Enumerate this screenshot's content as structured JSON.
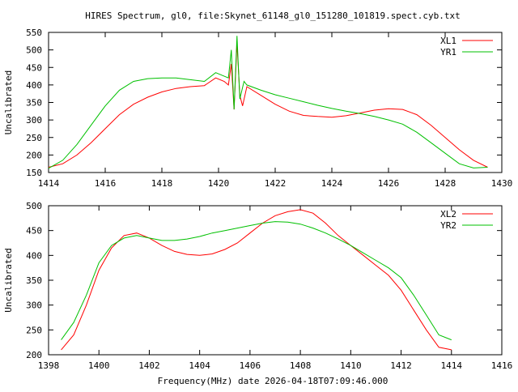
{
  "title": "HIRES Spectrum, gl0, file:Skynet_61148_gl0_151280_101819.spect.cyb.txt",
  "xlabel_bottom": "Frequency(MHz) date 2026-04-18T07:09:46.000",
  "chart_data": [
    {
      "type": "line",
      "ylabel": "Uncalibrated",
      "xlim": [
        1414,
        1430
      ],
      "ylim": [
        150,
        550
      ],
      "xticks": [
        1414,
        1416,
        1418,
        1420,
        1422,
        1424,
        1426,
        1428,
        1430
      ],
      "yticks": [
        150,
        200,
        250,
        300,
        350,
        400,
        450,
        500,
        550
      ],
      "legend": "top-right",
      "grid": false,
      "series": [
        {
          "name": "XL1",
          "color": "#ff0000",
          "x": [
            1414,
            1414.5,
            1415,
            1415.5,
            1416,
            1416.5,
            1417,
            1417.5,
            1418,
            1418.5,
            1419,
            1419.5,
            1419.9,
            1420.2,
            1420.35,
            1420.45,
            1420.55,
            1420.65,
            1420.75,
            1420.85,
            1421,
            1421.5,
            1422,
            1422.5,
            1423,
            1423.5,
            1424,
            1424.5,
            1425,
            1425.5,
            1426,
            1426.5,
            1427,
            1427.5,
            1428,
            1428.5,
            1429,
            1429.5
          ],
          "y": [
            165,
            175,
            200,
            235,
            275,
            315,
            345,
            365,
            380,
            390,
            395,
            398,
            420,
            410,
            400,
            460,
            330,
            520,
            370,
            340,
            395,
            370,
            345,
            325,
            313,
            310,
            308,
            312,
            320,
            328,
            332,
            330,
            315,
            285,
            250,
            215,
            185,
            165
          ]
        },
        {
          "name": "YR1",
          "color": "#00c000",
          "x": [
            1414,
            1414.5,
            1415,
            1415.5,
            1416,
            1416.5,
            1417,
            1417.5,
            1418,
            1418.5,
            1419,
            1419.5,
            1419.9,
            1420.2,
            1420.35,
            1420.45,
            1420.55,
            1420.65,
            1420.75,
            1420.9,
            1421,
            1421.5,
            1422,
            1422.5,
            1423,
            1423.5,
            1424,
            1424.5,
            1425,
            1425.5,
            1426,
            1426.5,
            1427,
            1427.5,
            1428,
            1428.5,
            1429,
            1429.5
          ],
          "y": [
            162,
            185,
            230,
            285,
            340,
            385,
            410,
            418,
            420,
            420,
            415,
            410,
            435,
            425,
            420,
            500,
            330,
            540,
            360,
            410,
            400,
            385,
            372,
            362,
            352,
            342,
            333,
            325,
            318,
            310,
            300,
            288,
            265,
            235,
            205,
            175,
            163,
            165
          ]
        }
      ]
    },
    {
      "type": "line",
      "ylabel": "Uncalibrated",
      "xlim": [
        1398,
        1416
      ],
      "ylim": [
        200,
        500
      ],
      "xticks": [
        1398,
        1400,
        1402,
        1404,
        1406,
        1408,
        1410,
        1412,
        1414,
        1416
      ],
      "yticks": [
        200,
        250,
        300,
        350,
        400,
        450,
        500
      ],
      "legend": "top-right",
      "grid": false,
      "series": [
        {
          "name": "XL2",
          "color": "#ff0000",
          "x": [
            1398.5,
            1399,
            1399.5,
            1400,
            1400.5,
            1401,
            1401.5,
            1402,
            1402.5,
            1403,
            1403.5,
            1404,
            1404.5,
            1405,
            1405.5,
            1406,
            1406.5,
            1407,
            1407.5,
            1408,
            1408.5,
            1409,
            1409.5,
            1410,
            1410.5,
            1411,
            1411.5,
            1412,
            1412.5,
            1413,
            1413.5,
            1414
          ],
          "y": [
            210,
            240,
            300,
            370,
            415,
            440,
            445,
            435,
            420,
            408,
            402,
            400,
            403,
            412,
            425,
            445,
            465,
            480,
            488,
            492,
            485,
            465,
            440,
            420,
            400,
            380,
            360,
            330,
            290,
            250,
            215,
            210
          ]
        },
        {
          "name": "YR2",
          "color": "#00c000",
          "x": [
            1398.5,
            1399,
            1399.5,
            1400,
            1400.5,
            1401,
            1401.5,
            1402,
            1402.5,
            1403,
            1403.5,
            1404,
            1404.5,
            1405,
            1405.5,
            1406,
            1406.5,
            1407,
            1407.5,
            1408,
            1408.5,
            1409,
            1409.5,
            1410,
            1410.5,
            1411,
            1411.5,
            1412,
            1412.5,
            1413,
            1413.5,
            1414
          ],
          "y": [
            230,
            265,
            320,
            385,
            420,
            435,
            440,
            435,
            430,
            430,
            433,
            438,
            445,
            450,
            455,
            460,
            465,
            468,
            467,
            463,
            455,
            445,
            433,
            420,
            405,
            390,
            375,
            355,
            320,
            280,
            240,
            230
          ]
        }
      ]
    }
  ]
}
